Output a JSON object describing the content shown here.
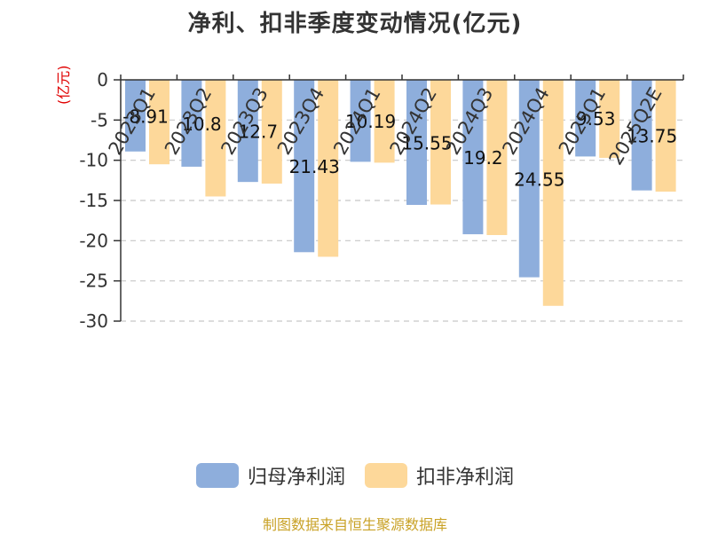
{
  "title": "净利、扣非季度变动情况(亿元)",
  "y_unit": "(亿元)",
  "source": "制图数据来自恒生聚源数据库",
  "colors": {
    "series1": "#8eaedc",
    "series2": "#fdd89a",
    "grid": "#c8c8c8",
    "axis": "#333333",
    "unit": "#e00000",
    "source": "#c9a227"
  },
  "chart_data": {
    "type": "bar",
    "title": "净利、扣非季度变动情况(亿元)",
    "ylabel": "(亿元)",
    "xlabel": "",
    "categories": [
      "2023Q1",
      "2023Q2",
      "2023Q3",
      "2023Q4",
      "2024Q1",
      "2024Q2",
      "2024Q3",
      "2024Q4",
      "2025Q1",
      "2025Q2E"
    ],
    "yticks": [
      0,
      -5,
      -10,
      -15,
      -20,
      -25,
      -30
    ],
    "ylim": [
      -30,
      0
    ],
    "grid": true,
    "legend_position": "bottom",
    "series": [
      {
        "name": "归母净利润",
        "values": [
          -8.91,
          -10.8,
          -12.7,
          -21.43,
          -10.19,
          -15.55,
          -19.2,
          -24.55,
          -9.53,
          -13.75
        ],
        "labels": [
          "-8.91",
          "10.8",
          "12.7",
          "21.43",
          "10.19",
          "15.55",
          "19.2",
          "24.55",
          "9.53",
          "13.75"
        ]
      },
      {
        "name": "扣非净利润",
        "values": [
          -10.5,
          -14.5,
          -12.9,
          -22.0,
          -10.3,
          -15.5,
          -19.3,
          -28.1,
          -9.7,
          -13.9
        ]
      }
    ]
  }
}
